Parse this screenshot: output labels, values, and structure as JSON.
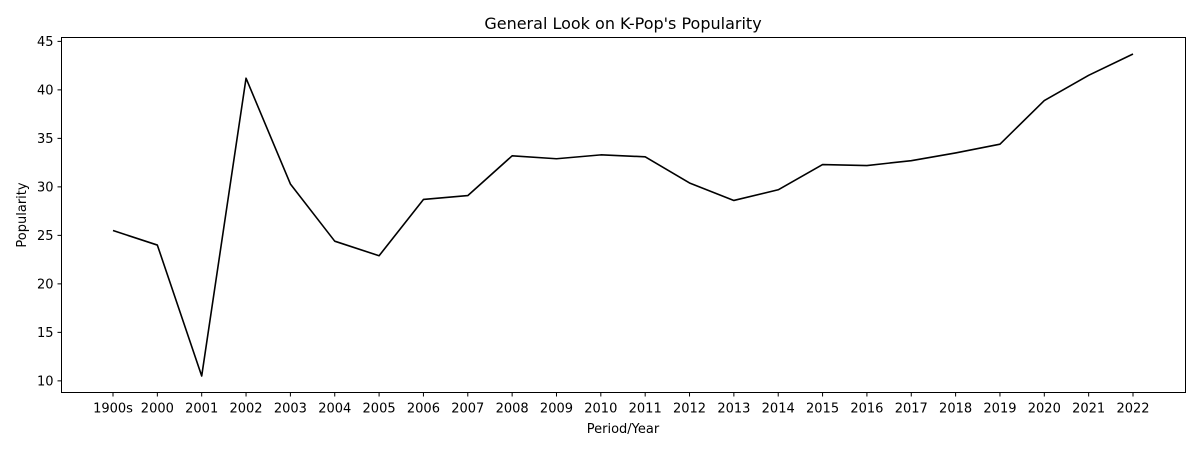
{
  "chart_data": {
    "type": "line",
    "title": "General Look on K-Pop's Popularity",
    "xlabel": "Period/Year",
    "ylabel": "Popularity",
    "categories": [
      "1900s",
      "2000",
      "2001",
      "2002",
      "2003",
      "2004",
      "2005",
      "2006",
      "2007",
      "2008",
      "2009",
      "2010",
      "2011",
      "2012",
      "2013",
      "2014",
      "2015",
      "2016",
      "2017",
      "2018",
      "2019",
      "2020",
      "2021",
      "2022"
    ],
    "series": [
      {
        "name": "",
        "color": "#000000",
        "values": [
          25.5,
          24.0,
          10.5,
          41.2,
          30.3,
          24.4,
          22.9,
          28.7,
          29.1,
          33.2,
          32.9,
          33.3,
          33.1,
          30.4,
          28.6,
          29.7,
          32.3,
          32.2,
          32.7,
          33.5,
          34.4,
          38.9,
          41.5,
          43.7
        ]
      }
    ],
    "yticks": [
      10,
      15,
      20,
      25,
      30,
      35,
      40,
      45
    ],
    "ylim": [
      8.8,
      45.4
    ],
    "grid": false,
    "legend": "none"
  }
}
